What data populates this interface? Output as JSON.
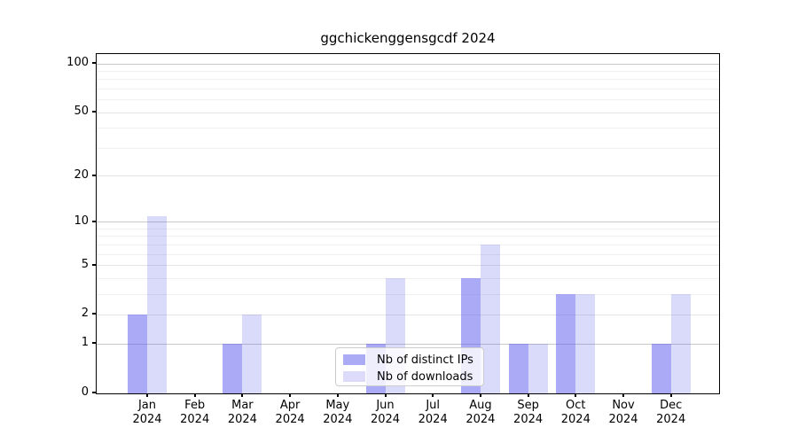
{
  "chart_data": {
    "type": "bar",
    "title": "ggchickenggensgcdf 2024",
    "categories": [
      "Jan 2024",
      "Feb 2024",
      "Mar 2024",
      "Apr 2024",
      "May 2024",
      "Jun 2024",
      "Jul 2024",
      "Aug 2024",
      "Sep 2024",
      "Oct 2024",
      "Nov 2024",
      "Dec 2024"
    ],
    "series": [
      {
        "name": "Nb of distinct IPs",
        "slug": "distinct-ips",
        "bar_color": "rgba(85,85,238,0.5)",
        "legend_color": "#aaaaf5",
        "values": [
          2,
          0,
          1,
          0,
          0,
          1,
          0,
          4,
          1,
          3,
          0,
          1
        ]
      },
      {
        "name": "Nb of downloads",
        "slug": "downloads",
        "bar_color": "rgba(85,85,238,0.22)",
        "legend_color": "#dcdcfa",
        "values": [
          11,
          0,
          2,
          0,
          0,
          4,
          0,
          7,
          1,
          3,
          0,
          3
        ]
      }
    ],
    "y_axis": {
      "scale": "log1p",
      "min": 0,
      "max": 115,
      "ticks": [
        0,
        1,
        2,
        5,
        10,
        20,
        50,
        100
      ],
      "strong_gridlines": [
        1,
        10,
        100
      ],
      "medium_gridlines": [
        2,
        5,
        20,
        50
      ],
      "minor_gridlines": [
        3,
        4,
        6,
        7,
        8,
        9,
        30,
        40,
        60,
        70,
        80,
        90
      ]
    },
    "grid": "horizontal",
    "legend_position": "lower center inside plot",
    "colors": {
      "grid_strong": "#c8c8c8",
      "grid_medium": "#e4e4e4",
      "grid_minor": "#f0f0f0",
      "spine": "#000000",
      "text": "#000000"
    }
  }
}
